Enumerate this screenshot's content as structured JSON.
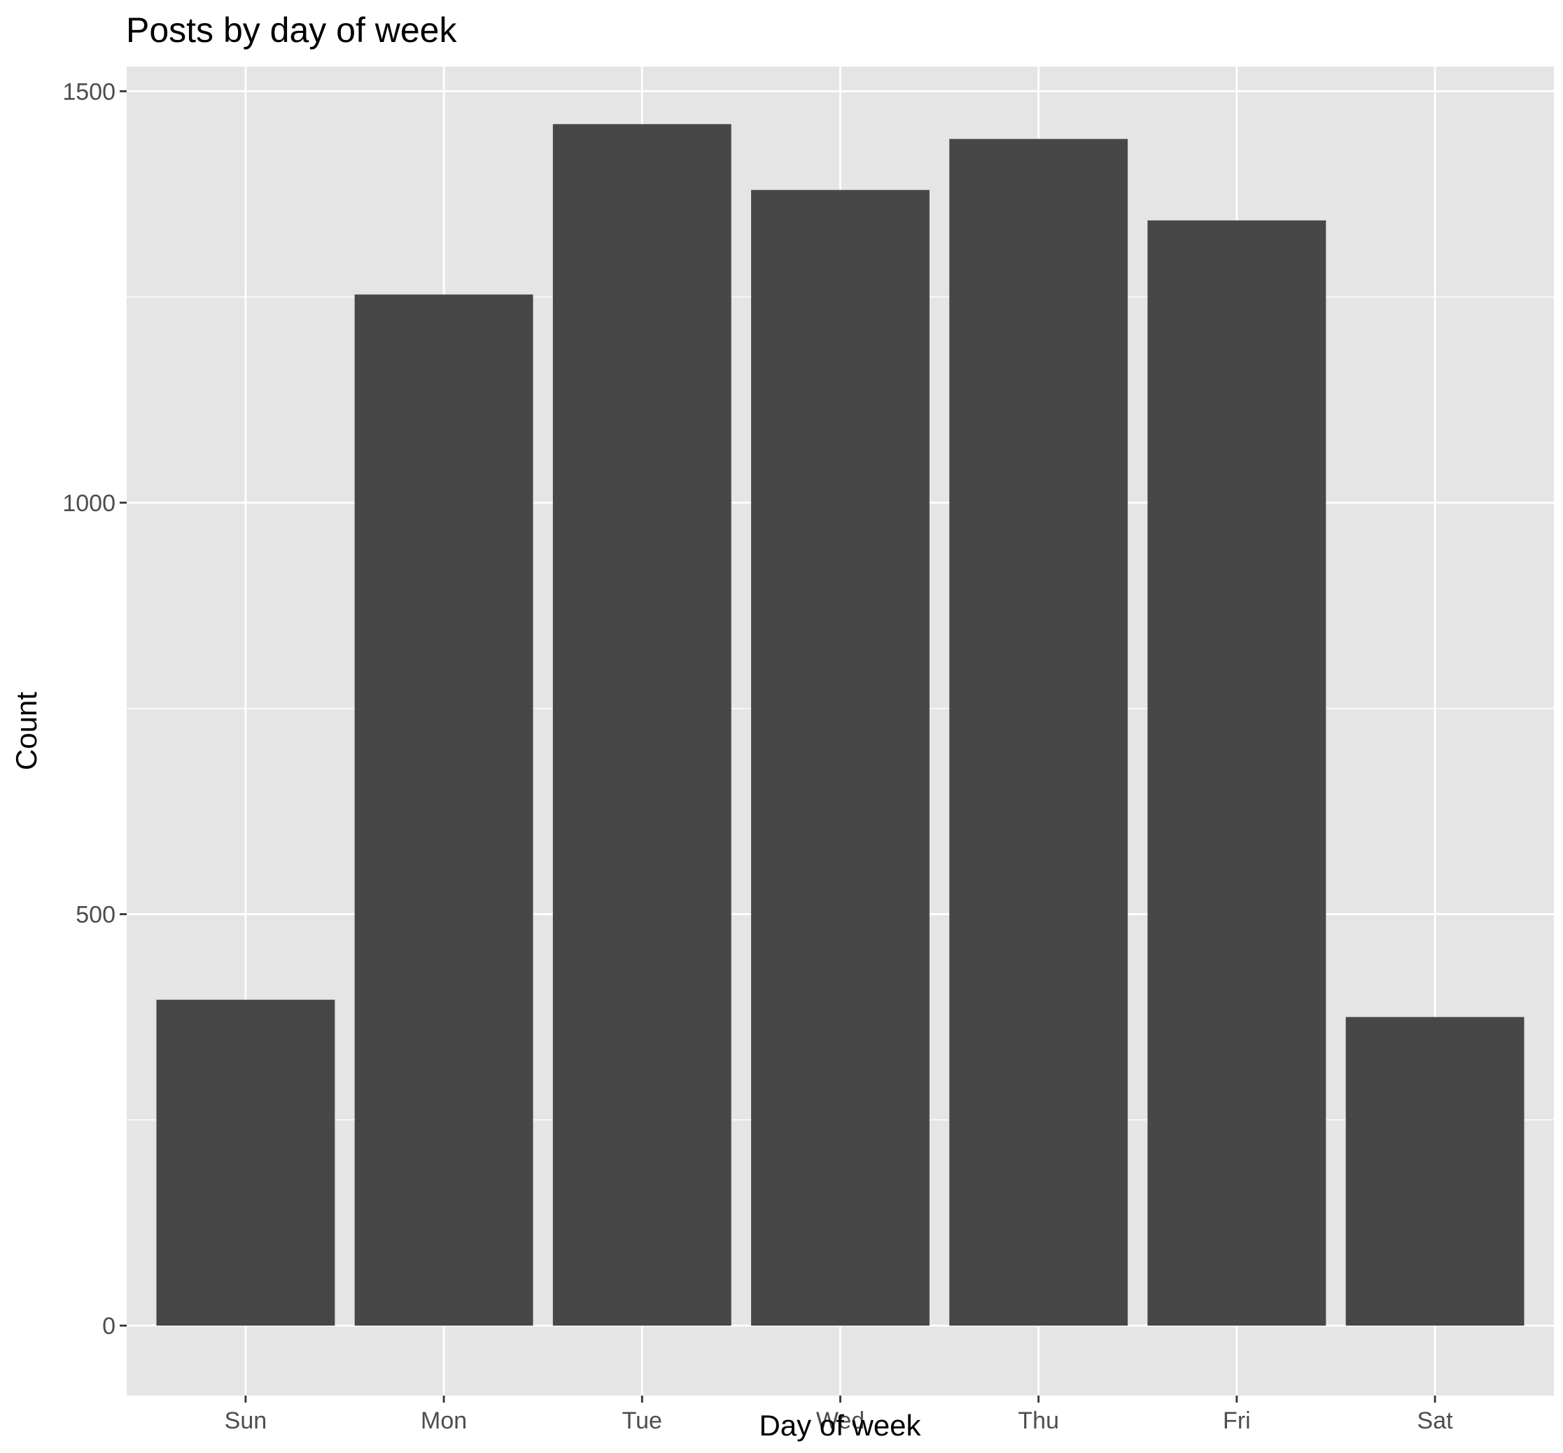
{
  "chart_data": {
    "type": "bar",
    "title": "Posts by day of week",
    "xlabel": "Day of week",
    "ylabel": "Count",
    "categories": [
      "Sun",
      "Mon",
      "Tue",
      "Wed",
      "Thu",
      "Fri",
      "Sat"
    ],
    "values": [
      396,
      1253,
      1460,
      1380,
      1442,
      1343,
      375
    ],
    "ylim": [
      -85,
      1530
    ],
    "yticks": [
      0,
      500,
      1000,
      1500
    ],
    "ytick_labels": [
      "0",
      "500",
      "1000",
      "1500"
    ],
    "grid": true,
    "legend": "none",
    "colors": {
      "bar": "#474747",
      "panel": "#e5e5e5",
      "grid": "#ffffff",
      "text": "#000000",
      "tick_text": "#4d4d4d",
      "tick_mark": "#333333"
    }
  }
}
